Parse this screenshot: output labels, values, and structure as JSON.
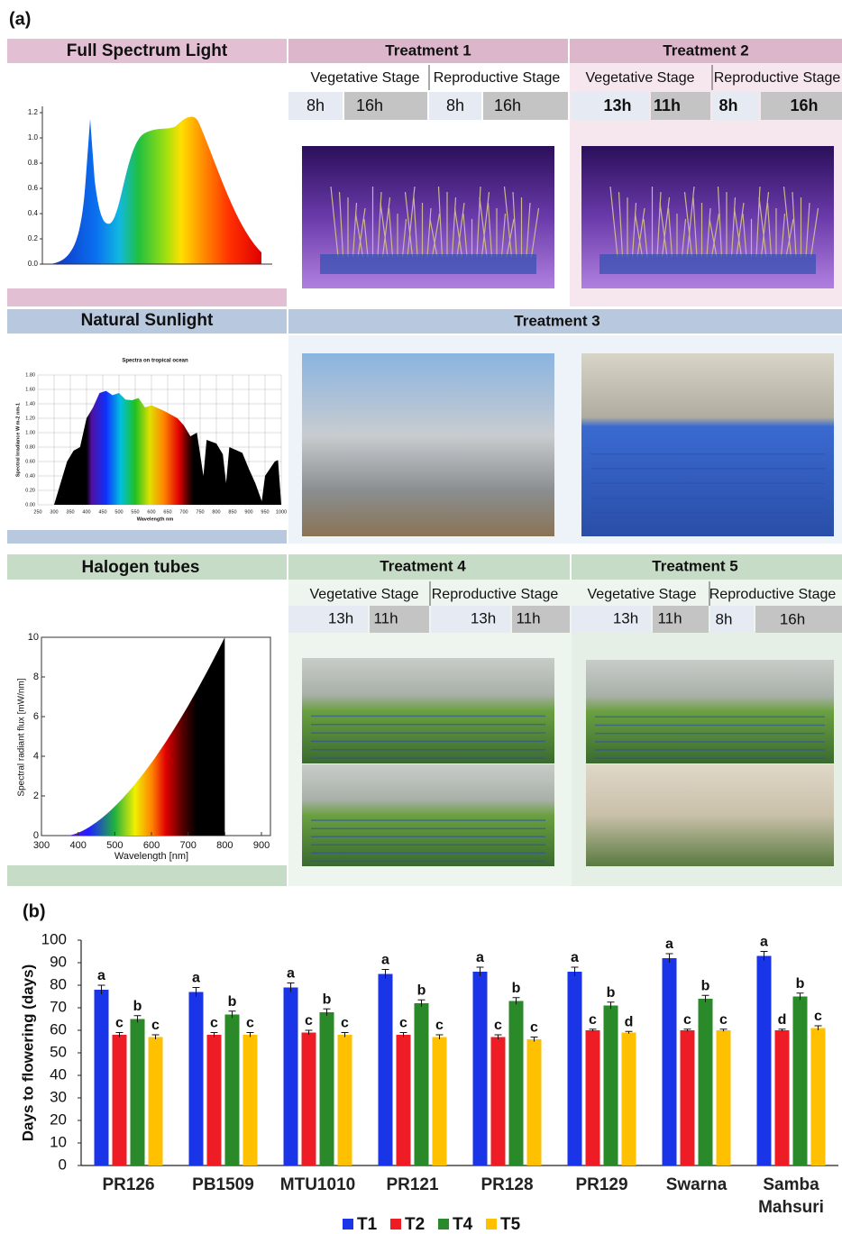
{
  "panel_a": {
    "label": "(a)",
    "rows": [
      {
        "source": "Full Spectrum Light",
        "treatments": [
          {
            "name": "Treatment 1",
            "stages": [
              "Vegetative Stage",
              "Reproductive Stage"
            ],
            "hours": [
              "8h",
              "16h",
              "8h",
              "16h"
            ]
          },
          {
            "name": "Treatment 2",
            "stages": [
              "Vegetative Stage",
              "Reproductive Stage"
            ],
            "hours": [
              "13h",
              "11h",
              "8h",
              "16h"
            ]
          }
        ],
        "spectrum": {
          "yticks": [
            "1.2",
            "1.0",
            "0.8",
            "0.6",
            "0.4",
            "0.2",
            "0.0"
          ]
        }
      },
      {
        "source": "Natural Sunlight",
        "treatments": [
          {
            "name": "Treatment 3"
          }
        ],
        "spectrum": {
          "title": "Spectra on tropical ocean",
          "ylabel": "Spectral Irradiance W m-2 nm-1",
          "xlabel": "Wavelength nm",
          "yticks": [
            "1.80",
            "1.60",
            "1.40",
            "1.20",
            "1.00",
            "0.80",
            "0.60",
            "0.40",
            "0.20",
            "0.00"
          ],
          "xticks": [
            "250",
            "300",
            "350",
            "400",
            "450",
            "500",
            "550",
            "600",
            "650",
            "700",
            "750",
            "800",
            "850",
            "900",
            "950",
            "1000"
          ]
        }
      },
      {
        "source": "Halogen tubes",
        "treatments": [
          {
            "name": "Treatment 4",
            "stages": [
              "Vegetative Stage",
              "Reproductive Stage"
            ],
            "hours": [
              "13h",
              "11h",
              "13h",
              "11h"
            ]
          },
          {
            "name": "Treatment 5",
            "stages": [
              "Vegetative Stage",
              "Reproductive Stage"
            ],
            "hours": [
              "13h",
              "11h",
              "8h",
              "16h"
            ]
          }
        ],
        "spectrum": {
          "ylabel": "Spectral radiant flux [mW/nm]",
          "xlabel": "Wavelength [nm]",
          "yticks": [
            "0",
            "2",
            "4",
            "6",
            "8",
            "10"
          ],
          "xticks": [
            "300",
            "400",
            "500",
            "600",
            "700",
            "800",
            "900"
          ]
        }
      }
    ]
  },
  "panel_b_label": "(b)",
  "chart_data": {
    "type": "bar",
    "y_label": "Days to flowering (days)",
    "categories": [
      "PR126",
      "PB1509",
      "MTU1010",
      "PR121",
      "PR128",
      "PR129",
      "Swarna",
      "Samba Mahsuri"
    ],
    "series": [
      {
        "name": "T1",
        "color": "#1a35e8",
        "values": [
          78,
          77,
          79,
          85,
          86,
          86,
          92,
          93
        ],
        "errors": [
          2,
          2,
          2,
          2,
          2,
          2,
          2,
          2
        ],
        "letters": [
          "a",
          "a",
          "a",
          "a",
          "a",
          "a",
          "a",
          "a"
        ]
      },
      {
        "name": "T2",
        "color": "#ee1c24",
        "values": [
          58,
          58,
          59,
          58,
          57,
          60,
          60,
          60
        ],
        "errors": [
          1,
          1,
          1,
          1,
          1,
          0.5,
          0.5,
          0.5
        ],
        "letters": [
          "c",
          "c",
          "c",
          "c",
          "c",
          "c",
          "c",
          "d"
        ]
      },
      {
        "name": "T4",
        "color": "#2a8a2a",
        "values": [
          65,
          67,
          68,
          72,
          73,
          71,
          74,
          75
        ],
        "errors": [
          1.5,
          1.5,
          1.5,
          1.5,
          1.5,
          1.5,
          1.5,
          1.5
        ],
        "letters": [
          "b",
          "b",
          "b",
          "b",
          "b",
          "b",
          "b",
          "b"
        ]
      },
      {
        "name": "T5",
        "color": "#ffc000",
        "values": [
          57,
          58,
          58,
          57,
          56,
          59,
          60,
          61
        ],
        "errors": [
          1,
          1,
          1,
          1,
          1,
          0.5,
          0.5,
          1
        ],
        "letters": [
          "c",
          "c",
          "c",
          "c",
          "c",
          "d",
          "c",
          "c"
        ]
      }
    ],
    "ylim": [
      0,
      100
    ],
    "yticks": [
      0,
      10,
      20,
      30,
      40,
      50,
      60,
      70,
      80,
      90,
      100
    ],
    "grid": false
  }
}
